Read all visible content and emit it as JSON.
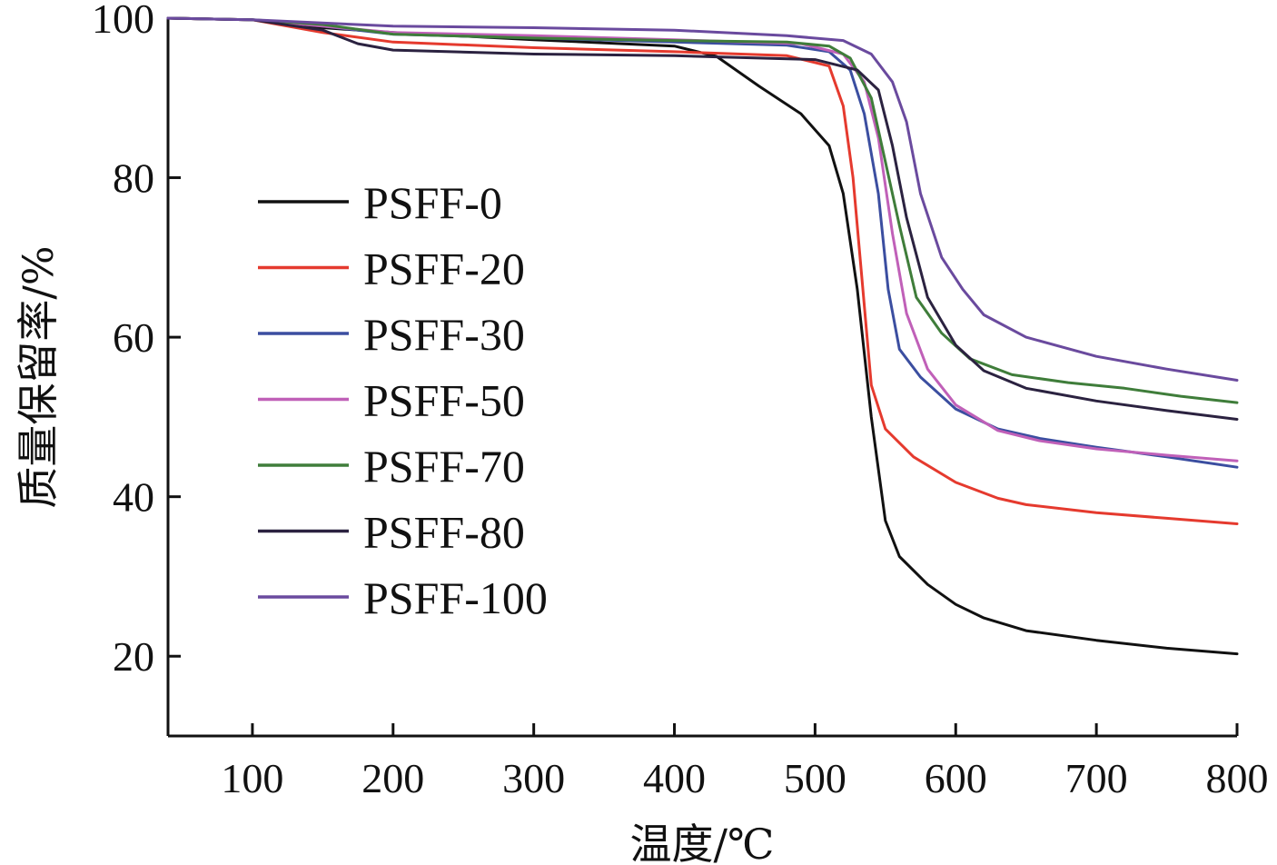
{
  "chart_data": {
    "type": "line",
    "xlabel": "温度/℃",
    "ylabel": "质量保留率/%",
    "xlim": [
      40,
      800
    ],
    "ylim": [
      10,
      100
    ],
    "xticks": [
      100,
      200,
      300,
      400,
      500,
      600,
      700,
      800
    ],
    "yticks": [
      20,
      40,
      60,
      80,
      100
    ],
    "grid": false,
    "legend_position": "middle-left",
    "series": [
      {
        "name": "PSFF-0",
        "color": "#111111",
        "points": [
          [
            40,
            100
          ],
          [
            100,
            99.8
          ],
          [
            150,
            98.8
          ],
          [
            200,
            98.2
          ],
          [
            300,
            97.3
          ],
          [
            400,
            96.5
          ],
          [
            430,
            95.2
          ],
          [
            460,
            91.5
          ],
          [
            490,
            88
          ],
          [
            510,
            84
          ],
          [
            520,
            78
          ],
          [
            530,
            66
          ],
          [
            540,
            50
          ],
          [
            550,
            37
          ],
          [
            560,
            32.5
          ],
          [
            580,
            29
          ],
          [
            600,
            26.5
          ],
          [
            620,
            24.8
          ],
          [
            650,
            23.2
          ],
          [
            700,
            22
          ],
          [
            750,
            21
          ],
          [
            800,
            20.3
          ]
        ]
      },
      {
        "name": "PSFF-20",
        "color": "#e53a2e",
        "points": [
          [
            40,
            100
          ],
          [
            100,
            99.8
          ],
          [
            150,
            98.2
          ],
          [
            200,
            97
          ],
          [
            300,
            96.3
          ],
          [
            400,
            95.8
          ],
          [
            480,
            95.3
          ],
          [
            510,
            94
          ],
          [
            520,
            89
          ],
          [
            527,
            80
          ],
          [
            533,
            68
          ],
          [
            540,
            54
          ],
          [
            550,
            48.5
          ],
          [
            570,
            45
          ],
          [
            600,
            41.8
          ],
          [
            630,
            39.8
          ],
          [
            650,
            39
          ],
          [
            700,
            38
          ],
          [
            750,
            37.3
          ],
          [
            800,
            36.6
          ]
        ]
      },
      {
        "name": "PSFF-30",
        "color": "#3b4ea0",
        "points": [
          [
            40,
            100
          ],
          [
            100,
            99.8
          ],
          [
            150,
            99
          ],
          [
            200,
            98
          ],
          [
            300,
            97.5
          ],
          [
            400,
            97
          ],
          [
            480,
            96.6
          ],
          [
            510,
            95.8
          ],
          [
            525,
            93.5
          ],
          [
            535,
            88
          ],
          [
            545,
            78
          ],
          [
            552,
            66
          ],
          [
            560,
            58.5
          ],
          [
            575,
            55
          ],
          [
            600,
            51
          ],
          [
            630,
            48.5
          ],
          [
            660,
            47.3
          ],
          [
            700,
            46.2
          ],
          [
            750,
            45
          ],
          [
            800,
            43.7
          ]
        ]
      },
      {
        "name": "PSFF-50",
        "color": "#c060b8",
        "points": [
          [
            40,
            100
          ],
          [
            100,
            99.8
          ],
          [
            150,
            99
          ],
          [
            200,
            98.2
          ],
          [
            300,
            97.8
          ],
          [
            400,
            97.3
          ],
          [
            490,
            96.8
          ],
          [
            520,
            95.5
          ],
          [
            535,
            92
          ],
          [
            545,
            85
          ],
          [
            555,
            73
          ],
          [
            565,
            63
          ],
          [
            580,
            56
          ],
          [
            600,
            51.5
          ],
          [
            630,
            48.3
          ],
          [
            660,
            47
          ],
          [
            700,
            46
          ],
          [
            750,
            45.2
          ],
          [
            800,
            44.5
          ]
        ]
      },
      {
        "name": "PSFF-70",
        "color": "#3f7d3a",
        "points": [
          [
            40,
            100
          ],
          [
            100,
            99.8
          ],
          [
            150,
            99.2
          ],
          [
            200,
            98
          ],
          [
            300,
            97.5
          ],
          [
            400,
            97.2
          ],
          [
            480,
            97
          ],
          [
            510,
            96.5
          ],
          [
            525,
            95
          ],
          [
            540,
            90
          ],
          [
            550,
            82
          ],
          [
            560,
            74
          ],
          [
            572,
            65
          ],
          [
            590,
            60.5
          ],
          [
            610,
            57.3
          ],
          [
            640,
            55.3
          ],
          [
            680,
            54.3
          ],
          [
            720,
            53.6
          ],
          [
            760,
            52.6
          ],
          [
            800,
            51.8
          ]
        ]
      },
      {
        "name": "PSFF-80",
        "color": "#2b2240",
        "points": [
          [
            40,
            100
          ],
          [
            100,
            99.8
          ],
          [
            150,
            98.5
          ],
          [
            175,
            96.8
          ],
          [
            200,
            96
          ],
          [
            300,
            95.5
          ],
          [
            400,
            95.3
          ],
          [
            500,
            94.8
          ],
          [
            530,
            93.5
          ],
          [
            545,
            91
          ],
          [
            555,
            84
          ],
          [
            565,
            75
          ],
          [
            580,
            65
          ],
          [
            600,
            59
          ],
          [
            620,
            55.8
          ],
          [
            650,
            53.6
          ],
          [
            700,
            52
          ],
          [
            750,
            50.8
          ],
          [
            800,
            49.7
          ]
        ]
      },
      {
        "name": "PSFF-100",
        "color": "#6a4a9e",
        "points": [
          [
            40,
            100
          ],
          [
            100,
            99.8
          ],
          [
            200,
            99
          ],
          [
            300,
            98.8
          ],
          [
            400,
            98.5
          ],
          [
            480,
            97.8
          ],
          [
            520,
            97.2
          ],
          [
            540,
            95.5
          ],
          [
            555,
            92
          ],
          [
            565,
            87
          ],
          [
            575,
            78
          ],
          [
            590,
            70
          ],
          [
            605,
            66
          ],
          [
            620,
            62.8
          ],
          [
            650,
            60
          ],
          [
            700,
            57.6
          ],
          [
            750,
            56
          ],
          [
            800,
            54.6
          ]
        ]
      }
    ]
  }
}
